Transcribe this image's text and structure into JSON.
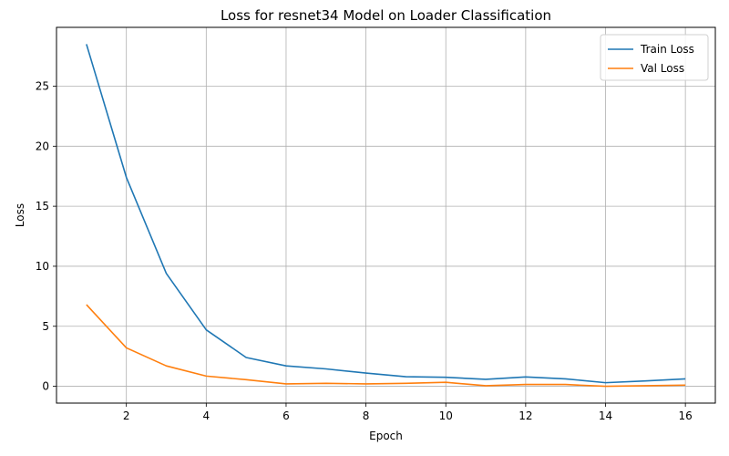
{
  "chart_data": {
    "type": "line",
    "title": "Loss for resnet34 Model on Loader Classification",
    "xlabel": "Epoch",
    "ylabel": "Loss",
    "x": [
      1,
      2,
      3,
      4,
      5,
      6,
      7,
      8,
      9,
      10,
      11,
      12,
      13,
      14,
      15,
      16
    ],
    "series": [
      {
        "name": "Train Loss",
        "color": "#1f77b4",
        "values": [
          28.5,
          17.4,
          9.4,
          4.7,
          2.4,
          1.7,
          1.45,
          1.1,
          0.8,
          0.75,
          0.58,
          0.78,
          0.62,
          0.3,
          0.45,
          0.62
        ]
      },
      {
        "name": "Val Loss",
        "color": "#ff7f0e",
        "values": [
          6.8,
          3.2,
          1.7,
          0.85,
          0.55,
          0.2,
          0.25,
          0.2,
          0.25,
          0.33,
          0.05,
          0.15,
          0.15,
          0.0,
          0.05,
          0.1
        ]
      }
    ],
    "xlim": [
      0.25,
      16.75
    ],
    "ylim": [
      -1.4,
      29.9
    ],
    "xticks": [
      2,
      4,
      6,
      8,
      10,
      12,
      14,
      16
    ],
    "yticks": [
      0,
      5,
      10,
      15,
      20,
      25
    ],
    "grid": true,
    "legend_position": "top-right"
  }
}
